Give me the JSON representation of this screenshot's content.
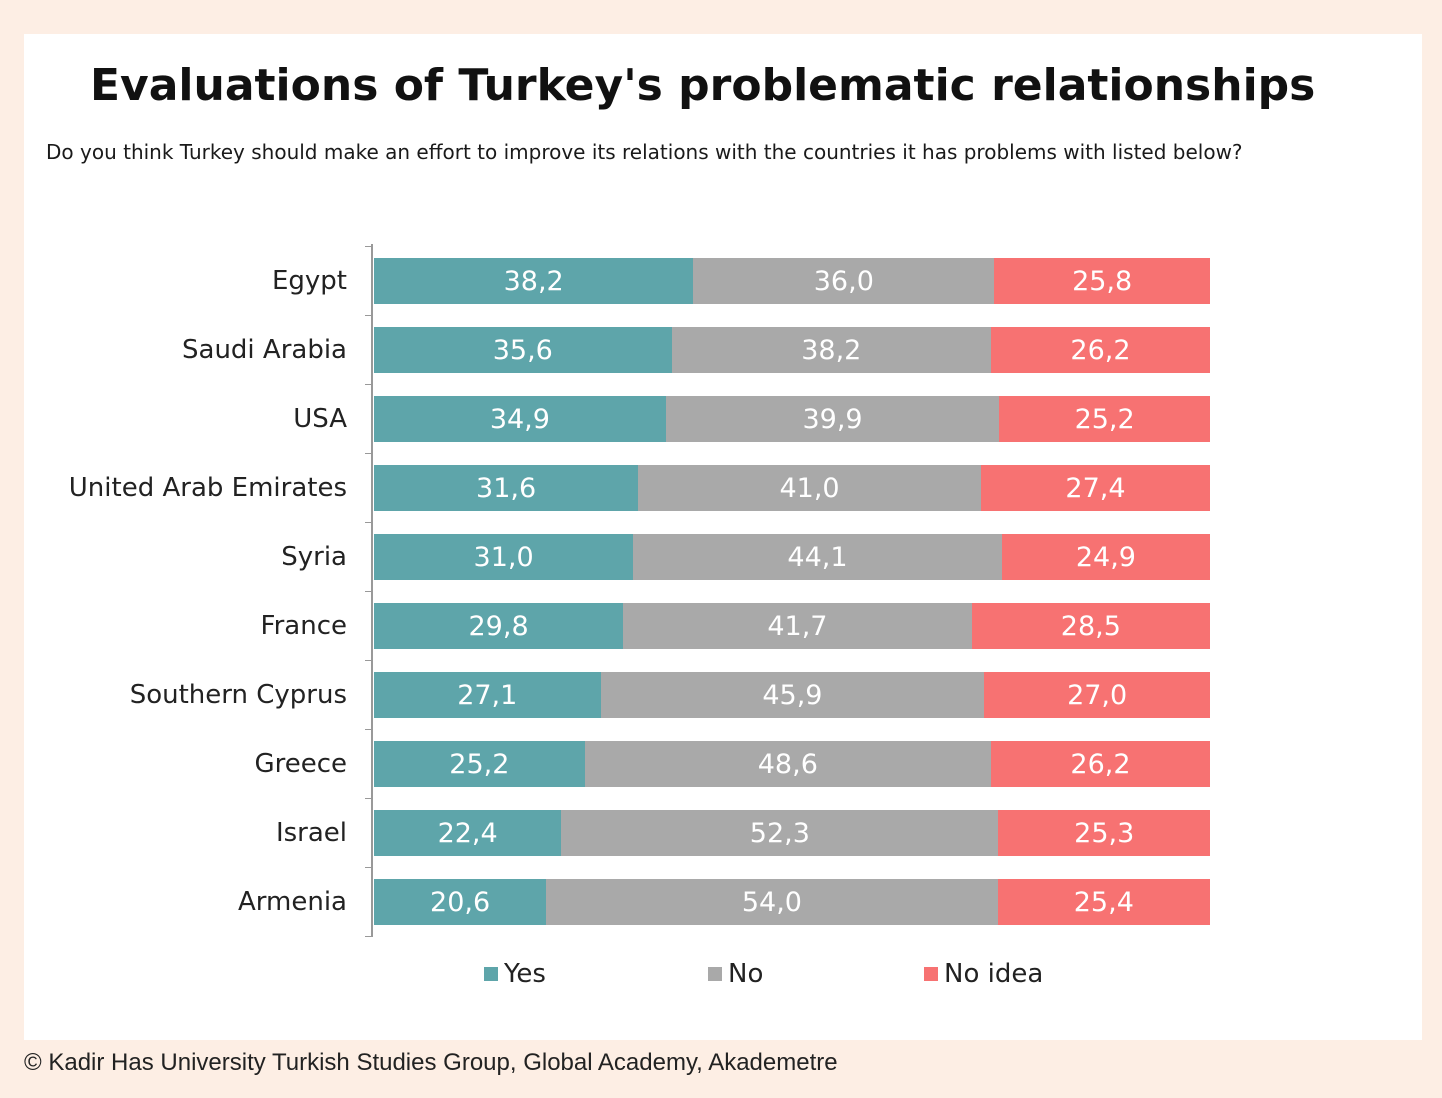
{
  "chart_data": {
    "type": "bar",
    "orientation": "horizontal",
    "stacked": true,
    "title": "Evaluations of Turkey's problematic relationships",
    "subtitle": "Do you think Turkey should make an effort to improve its relations with the countries it has problems with listed below?",
    "categories": [
      "Egypt",
      "Saudi Arabia",
      "USA",
      "United Arab Emirates",
      "Syria",
      "France",
      "Southern Cyprus",
      "Greece",
      "Israel",
      "Armenia"
    ],
    "series": [
      {
        "name": "Yes",
        "color": "#5ea5aa",
        "values": [
          38.2,
          35.6,
          34.9,
          31.6,
          31.0,
          29.8,
          27.1,
          25.2,
          22.4,
          20.6
        ],
        "labels": [
          "38,2",
          "35,6",
          "34,9",
          "31,6",
          "31,0",
          "29,8",
          "27,1",
          "25,2",
          "22,4",
          "20,6"
        ]
      },
      {
        "name": "No",
        "color": "#a9a9a9",
        "values": [
          36.0,
          38.2,
          39.9,
          41.0,
          44.1,
          41.7,
          45.9,
          48.6,
          52.3,
          54.0
        ],
        "labels": [
          "36,0",
          "38,2",
          "39,9",
          "41,0",
          "44,1",
          "41,7",
          "45,9",
          "48,6",
          "52,3",
          "54,0"
        ]
      },
      {
        "name": "No idea",
        "color": "#f77272",
        "values": [
          25.8,
          26.2,
          25.2,
          27.4,
          24.9,
          28.5,
          27.0,
          26.2,
          25.3,
          25.4
        ],
        "labels": [
          "25,8",
          "26,2",
          "25,2",
          "27,4",
          "24,9",
          "28,5",
          "27,0",
          "26,2",
          "25,3",
          "25,4"
        ]
      }
    ],
    "xlim": [
      0,
      100
    ],
    "grid": false,
    "legend_position": "bottom"
  },
  "footer": {
    "credit": "© Kadir Has University Turkish Studies Group, Global Academy, Akademetre"
  }
}
